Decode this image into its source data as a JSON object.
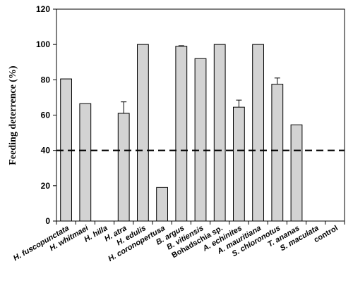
{
  "chart_data": {
    "type": "bar",
    "title": "",
    "xlabel": "",
    "ylabel": "Feeding deterrence (%)",
    "ylim": [
      0,
      120
    ],
    "yticks": [
      0,
      20,
      40,
      60,
      80,
      100,
      120
    ],
    "grid": false,
    "legend": "none",
    "reference_line": {
      "y": 40,
      "style": "dashed",
      "color": "#000000"
    },
    "bar_color": "#d3d3d3",
    "categories": [
      "H. fuscopunctata",
      "H. whitmaei",
      "H. hilla",
      "H. atra",
      "H. edulis",
      "H. coronopertusa",
      "B. argus",
      "B. vitiensis",
      "Bohadschia sp.",
      "A. echinites",
      "A. mauritiana",
      "S. chloronotus",
      "T. ananas",
      "S. maculata",
      "control"
    ],
    "italic": [
      true,
      true,
      true,
      true,
      true,
      true,
      true,
      true,
      false,
      true,
      true,
      true,
      true,
      true,
      false
    ],
    "values": [
      80.5,
      66.5,
      0,
      61,
      100,
      19,
      99,
      92,
      100,
      64.5,
      100,
      77.5,
      54.5,
      0,
      0
    ],
    "errors": [
      0,
      0,
      0,
      6.5,
      0,
      0,
      0.3,
      0,
      0,
      4,
      0,
      3.5,
      0,
      0,
      0
    ]
  }
}
